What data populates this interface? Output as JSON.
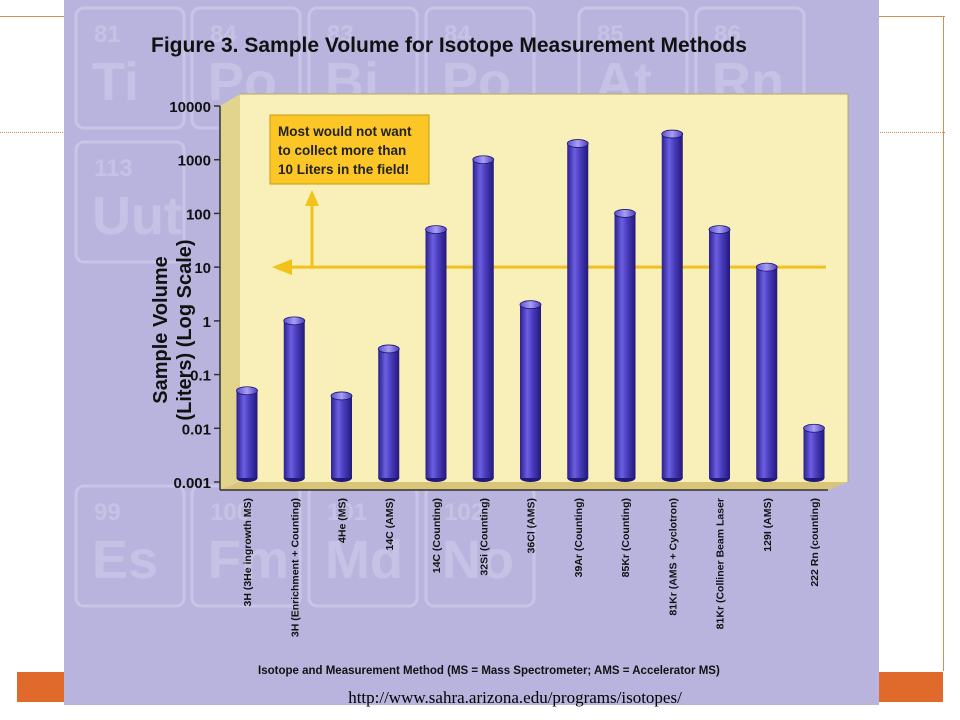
{
  "slide": {
    "source_url": "http://www.sahra.arizona.edu/programs/isotopes/",
    "colors": {
      "accent": "#e06a2b",
      "figure_bg": "#b9b4dd",
      "plot_bg": "#f8f0b8",
      "bar": "#4a3dbd",
      "callout": "#fcc726"
    }
  },
  "chart_data": {
    "type": "bar",
    "title": "Figure 3. Sample Volume for Isotope Measurement Methods",
    "ylabel": "Sample Volume (Liters) (Log Scale)",
    "ylabel_lines": [
      "Sample Volume",
      "(Liters) (Log Scale)"
    ],
    "xlabel": "Isotope and Measurement Method (MS = Mass Spectrometer; AMS = Accelerator MS)",
    "yscale": "log",
    "ylim": [
      0.001,
      10000
    ],
    "yticks": [
      "0.001",
      "0.01",
      "0.1",
      "1",
      "10",
      "100",
      "1000",
      "10000"
    ],
    "categories": [
      "3H (3He ingrowth MS)",
      "3H (Enrichment + Counting)",
      "4He (MS)",
      "14C (AMS)",
      "14C (Counting)",
      "32Si (Counting)",
      "36Cl (AMS)",
      "39Ar (Counting)",
      "85Kr (Counting)",
      "81Kr (AMS + Cyclotron)",
      "81Kr (Colliner Beam Laser",
      "129I (AMS)",
      "222 Rn (counting)"
    ],
    "values": [
      0.05,
      1,
      0.04,
      0.3,
      50,
      1000,
      2,
      2000,
      100,
      3000,
      50,
      10,
      0.01
    ],
    "annotation": {
      "lines": [
        "Most would not want",
        "to collect more than",
        "10 Liters in the field!"
      ],
      "reference_value": 10
    },
    "background_tiles": [
      {
        "num": "81",
        "sym": "Ti"
      },
      {
        "num": "84",
        "sym": "Po"
      },
      {
        "num": "83",
        "sym": "Bi"
      },
      {
        "num": "84",
        "sym": "Po"
      },
      {
        "num": "85",
        "sym": "At"
      },
      {
        "num": "86",
        "sym": "Rn"
      },
      {
        "num": "113",
        "sym": "Uut"
      },
      {
        "num": "102",
        "sym": "No"
      },
      {
        "num": "99",
        "sym": "Es"
      },
      {
        "num": "100",
        "sym": "Fm"
      },
      {
        "num": "101",
        "sym": "Md"
      },
      {
        "num": "102",
        "sym": "No"
      }
    ],
    "grid": false,
    "legend": "none"
  }
}
